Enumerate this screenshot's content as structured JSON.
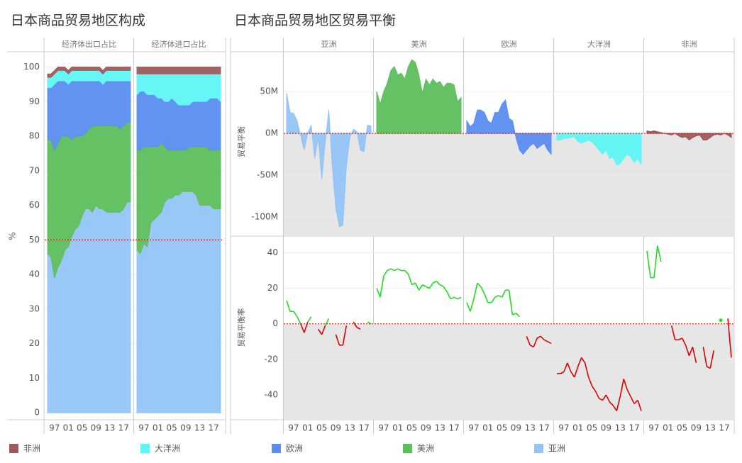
{
  "chart_data": [
    {
      "type": "stacked_area",
      "title": "日本商品贸易地区构成",
      "ylabel": "%",
      "ylim": [
        -2,
        104
      ],
      "yticks": [
        0,
        10,
        20,
        30,
        40,
        50,
        60,
        70,
        80,
        90,
        100
      ],
      "reference_line": 50,
      "categories": [
        null,
        null,
        "97",
        null,
        null,
        null,
        "01",
        null,
        null,
        null,
        "05",
        null,
        null,
        null,
        "09",
        null,
        null,
        null,
        "13",
        null,
        null,
        null,
        "17",
        null,
        null
      ],
      "panels": [
        {
          "name": "经济体出口占比",
          "series": [
            {
              "name": "亚洲",
              "color": "#93c4f5",
              "values": [
                46,
                45,
                39,
                42,
                44,
                47,
                48,
                51,
                53,
                54,
                57,
                59,
                59,
                58,
                60,
                59,
                59,
                58,
                58,
                58,
                58,
                58,
                59,
                61,
                61
              ]
            },
            {
              "name": "美洲",
              "color": "#5cbf5c",
              "values": [
                33,
                34,
                37,
                36,
                36,
                33,
                32,
                28,
                27,
                26,
                23,
                22,
                23,
                25,
                23,
                24,
                24,
                25,
                25,
                25,
                25,
                24,
                24,
                23,
                23
              ]
            },
            {
              "name": "欧洲",
              "color": "#5b8def",
              "values": [
                15,
                15,
                19,
                18,
                16,
                16,
                15,
                17,
                16,
                16,
                16,
                15,
                14,
                13,
                13,
                13,
                12,
                13,
                13,
                13,
                13,
                14,
                13,
                12,
                12
              ]
            },
            {
              "name": "大洋洲",
              "color": "#5ff5f5",
              "values": [
                3,
                3,
                3,
                3,
                3,
                3,
                3,
                3,
                3,
                3,
                3,
                3,
                3,
                3,
                3,
                3,
                3,
                3,
                3,
                3,
                3,
                3,
                3,
                3,
                3
              ]
            },
            {
              "name": "非洲",
              "color": "#9c5a5a",
              "values": [
                1,
                1,
                1,
                1,
                1,
                1,
                1,
                1,
                1,
                1,
                1,
                1,
                1,
                1,
                1,
                1,
                1,
                1,
                1,
                1,
                1,
                1,
                1,
                1,
                1
              ]
            }
          ]
        },
        {
          "name": "经济体进口占比",
          "series": [
            {
              "name": "亚洲",
              "color": "#93c4f5",
              "values": [
                47,
                46,
                49,
                48,
                55,
                56,
                57,
                58,
                61,
                62,
                62,
                63,
                63,
                64,
                64,
                64,
                64,
                63,
                60,
                60,
                60,
                60,
                59,
                59,
                59
              ]
            },
            {
              "name": "美洲",
              "color": "#5cbf5c",
              "values": [
                29,
                30,
                28,
                29,
                22,
                21,
                20,
                20,
                16,
                14,
                14,
                13,
                13,
                12,
                12,
                13,
                13,
                14,
                17,
                17,
                17,
                16,
                17,
                17,
                17
              ]
            },
            {
              "name": "欧洲",
              "color": "#5b8def",
              "values": [
                16,
                17,
                16,
                15,
                15,
                15,
                14,
                13,
                13,
                14,
                15,
                14,
                13,
                13,
                13,
                12,
                13,
                13,
                13,
                13,
                13,
                15,
                15,
                15,
                14
              ]
            },
            {
              "name": "大洋洲",
              "color": "#5ff5f5",
              "values": [
                6,
                5,
                5,
                6,
                6,
                6,
                7,
                7,
                8,
                8,
                7,
                8,
                9,
                9,
                9,
                9,
                8,
                8,
                8,
                8,
                8,
                7,
                7,
                7,
                8
              ]
            },
            {
              "name": "非洲",
              "color": "#9c5a5a",
              "values": [
                2,
                2,
                2,
                2,
                2,
                2,
                2,
                2,
                2,
                2,
                2,
                2,
                2,
                2,
                2,
                2,
                2,
                2,
                2,
                2,
                2,
                2,
                2,
                2,
                2
              ]
            }
          ]
        }
      ]
    },
    {
      "type": "balance_grid",
      "title": "日本商品贸易地区贸易平衡",
      "categories": [
        null,
        null,
        "97",
        null,
        null,
        null,
        "01",
        null,
        null,
        null,
        "05",
        null,
        null,
        null,
        "09",
        null,
        null,
        null,
        "13",
        null,
        null,
        null,
        "17",
        null,
        null
      ],
      "balance": {
        "ylabel": "贸易平衡",
        "ylim": [
          -123,
          96
        ],
        "yticks": [
          {
            "value": 50,
            "label": "50M"
          },
          {
            "value": 0,
            "label": "0M"
          },
          {
            "value": -50,
            "label": "-50M"
          },
          {
            "value": -100,
            "label": "-100M"
          }
        ],
        "reference_line": 0,
        "series": [
          {
            "name": "亚洲",
            "color": "#93c4f5",
            "values": [
              48,
              25,
              24,
              15,
              -3,
              -20,
              0,
              10,
              -30,
              -5,
              -55,
              -10,
              28,
              -40,
              -90,
              -112,
              -110,
              -40,
              -5,
              5,
              2,
              -20,
              -22,
              10,
              9
            ]
          },
          {
            "name": "美洲",
            "color": "#5cbf5c",
            "values": [
              50,
              35,
              50,
              60,
              75,
              80,
              70,
              72,
              65,
              80,
              88,
              85,
              70,
              48,
              65,
              58,
              65,
              60,
              62,
              55,
              60,
              60,
              58,
              38,
              43
            ]
          },
          {
            "name": "欧洲",
            "color": "#5b8def",
            "values": [
              15,
              8,
              12,
              28,
              28,
              25,
              15,
              12,
              25,
              25,
              35,
              40,
              18,
              15,
              -5,
              -20,
              -25,
              -20,
              -15,
              -12,
              -18,
              -15,
              -12,
              -20,
              -25
            ]
          },
          {
            "name": "大洋洲",
            "color": "#5ff5f5",
            "values": [
              -8,
              -8,
              -6,
              -6,
              -5,
              -4,
              -10,
              -12,
              -10,
              -8,
              -10,
              -15,
              -20,
              -25,
              -20,
              -30,
              -28,
              -38,
              -36,
              -30,
              -25,
              -28,
              -35,
              -30,
              -38
            ]
          },
          {
            "name": "非洲",
            "color": "#9c5a5a",
            "values": [
              3,
              2,
              3,
              2,
              1,
              0,
              -1,
              -2,
              0,
              -3,
              -5,
              -4,
              -8,
              -5,
              -3,
              -2,
              -8,
              -8,
              -5,
              -2,
              -1,
              -2,
              0,
              -2,
              -5
            ]
          }
        ]
      },
      "rate": {
        "ylabel": "贸易平衡率",
        "ylim": [
          -54,
          49
        ],
        "yticks": [
          -40,
          -20,
          0,
          20,
          40
        ],
        "positive_color": "#22dd22",
        "negative_color": "#e00000",
        "series": [
          {
            "values": [
              13,
              7,
              7,
              4,
              0,
              -5,
              1,
              4,
              null,
              -3,
              -6,
              -1,
              3,
              null,
              -6,
              -12,
              -12,
              -1,
              null,
              1,
              -2,
              -3,
              null,
              1,
              0
            ]
          },
          {
            "values": [
              20,
              15,
              27,
              30,
              31,
              30,
              31,
              30,
              30,
              28,
              22,
              23,
              19,
              22,
              21,
              20,
              23,
              24,
              22,
              21,
              18,
              14,
              15,
              14,
              15
            ]
          },
          {
            "values": [
              12,
              7,
              14,
              23,
              21,
              17,
              12,
              12,
              15,
              16,
              15,
              19,
              19,
              5,
              6,
              4,
              null,
              -7,
              -12,
              -13,
              -8,
              -7,
              -9,
              -10,
              -11
            ]
          },
          {
            "values": [
              -28,
              -28,
              -27,
              -22,
              -27,
              -30,
              -24,
              -19,
              -22,
              -30,
              -35,
              -38,
              -42,
              -43,
              -40,
              -44,
              -46,
              -49,
              -41,
              -31,
              -37,
              -41,
              -45,
              -43,
              -49
            ]
          },
          {
            "values": [
              41,
              26,
              26,
              44,
              35,
              null,
              null,
              -1,
              -9,
              -9,
              -8,
              -12,
              -18,
              -13,
              -22,
              null,
              -13,
              -24,
              -25,
              -15,
              null,
              2,
              null,
              3,
              -19
            ]
          }
        ]
      }
    }
  ]
}
